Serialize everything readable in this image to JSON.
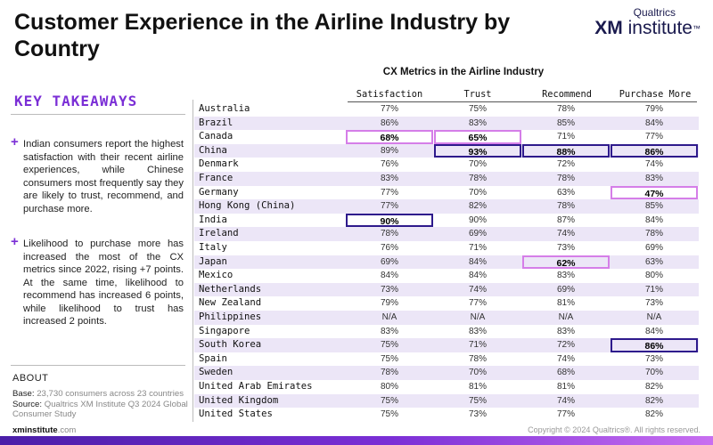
{
  "title": "Customer Experience in the Airline Industry by Country",
  "logo": {
    "top": "Qualtrics",
    "xm": "XM",
    "institute": " institute",
    "tm": "™"
  },
  "takeaways": {
    "heading": "KEY TAKEAWAYS",
    "items": [
      "Indian consumers report the highest satisfaction with their recent airline experiences, while Chinese consumers most frequently say they are likely to trust, recommend, and purchase more.",
      "Likelihood to purchase more has increased the most of the CX metrics since 2022, rising +7 points. At the same time, likelihood to recommend has increased 6 points, while likelihood to trust has increased 2 points."
    ]
  },
  "about": {
    "heading": "ABOUT",
    "base_label": "Base:",
    "base_value": " 23,730 consumers across 23 countries",
    "source_label": "Source:",
    "source_value": " Qualtrics XM Institute Q3 2024 Global Consumer Study",
    "site_main": "xminstitute",
    "site_dom": ".com"
  },
  "copyright": "Copyright © 2024 Qualtrics®. All rights reserved.",
  "chart_data": {
    "type": "table",
    "title": "CX Metrics in the Airline Industry",
    "columns": [
      "Satisfaction",
      "Trust",
      "Recommend",
      "Purchase More"
    ],
    "rows": [
      {
        "country": "Australia",
        "values": [
          "77%",
          "75%",
          "78%",
          "79%"
        ],
        "highlights": [
          "",
          "",
          "",
          ""
        ]
      },
      {
        "country": "Brazil",
        "values": [
          "86%",
          "83%",
          "85%",
          "84%"
        ],
        "highlights": [
          "",
          "",
          "",
          ""
        ]
      },
      {
        "country": "Canada",
        "values": [
          "68%",
          "65%",
          "71%",
          "77%"
        ],
        "highlights": [
          "low",
          "low",
          "",
          ""
        ]
      },
      {
        "country": "China",
        "values": [
          "89%",
          "93%",
          "88%",
          "86%"
        ],
        "highlights": [
          "",
          "high",
          "high",
          "high"
        ]
      },
      {
        "country": "Denmark",
        "values": [
          "76%",
          "70%",
          "72%",
          "74%"
        ],
        "highlights": [
          "",
          "",
          "",
          ""
        ]
      },
      {
        "country": "France",
        "values": [
          "83%",
          "78%",
          "78%",
          "83%"
        ],
        "highlights": [
          "",
          "",
          "",
          ""
        ]
      },
      {
        "country": "Germany",
        "values": [
          "77%",
          "70%",
          "63%",
          "47%"
        ],
        "highlights": [
          "",
          "",
          "",
          "low"
        ]
      },
      {
        "country": "Hong Kong (China)",
        "values": [
          "77%",
          "82%",
          "78%",
          "85%"
        ],
        "highlights": [
          "",
          "",
          "",
          ""
        ]
      },
      {
        "country": "India",
        "values": [
          "90%",
          "90%",
          "87%",
          "84%"
        ],
        "highlights": [
          "high",
          "",
          "",
          ""
        ]
      },
      {
        "country": "Ireland",
        "values": [
          "78%",
          "69%",
          "74%",
          "78%"
        ],
        "highlights": [
          "",
          "",
          "",
          ""
        ]
      },
      {
        "country": "Italy",
        "values": [
          "76%",
          "71%",
          "73%",
          "69%"
        ],
        "highlights": [
          "",
          "",
          "",
          ""
        ]
      },
      {
        "country": "Japan",
        "values": [
          "69%",
          "84%",
          "62%",
          "63%"
        ],
        "highlights": [
          "",
          "",
          "low",
          ""
        ]
      },
      {
        "country": "Mexico",
        "values": [
          "84%",
          "84%",
          "83%",
          "80%"
        ],
        "highlights": [
          "",
          "",
          "",
          ""
        ]
      },
      {
        "country": "Netherlands",
        "values": [
          "73%",
          "74%",
          "69%",
          "71%"
        ],
        "highlights": [
          "",
          "",
          "",
          ""
        ]
      },
      {
        "country": "New Zealand",
        "values": [
          "79%",
          "77%",
          "81%",
          "73%"
        ],
        "highlights": [
          "",
          "",
          "",
          ""
        ]
      },
      {
        "country": "Philippines",
        "values": [
          "N/A",
          "N/A",
          "N/A",
          "N/A"
        ],
        "highlights": [
          "",
          "",
          "",
          ""
        ]
      },
      {
        "country": "Singapore",
        "values": [
          "83%",
          "83%",
          "83%",
          "84%"
        ],
        "highlights": [
          "",
          "",
          "",
          ""
        ]
      },
      {
        "country": "South Korea",
        "values": [
          "75%",
          "71%",
          "72%",
          "86%"
        ],
        "highlights": [
          "",
          "",
          "",
          "high"
        ]
      },
      {
        "country": "Spain",
        "values": [
          "75%",
          "78%",
          "74%",
          "73%"
        ],
        "highlights": [
          "",
          "",
          "",
          ""
        ]
      },
      {
        "country": "Sweden",
        "values": [
          "78%",
          "70%",
          "68%",
          "70%"
        ],
        "highlights": [
          "",
          "",
          "",
          ""
        ]
      },
      {
        "country": "United Arab Emirates",
        "values": [
          "80%",
          "81%",
          "81%",
          "82%"
        ],
        "highlights": [
          "",
          "",
          "",
          ""
        ]
      },
      {
        "country": "United Kingdom",
        "values": [
          "75%",
          "75%",
          "74%",
          "82%"
        ],
        "highlights": [
          "",
          "",
          "",
          ""
        ]
      },
      {
        "country": "United States",
        "values": [
          "75%",
          "73%",
          "77%",
          "82%"
        ],
        "highlights": [
          "",
          "",
          "",
          ""
        ]
      }
    ]
  },
  "colors": {
    "accent": "#7b2fd6",
    "high_outline": "#2e1a8c",
    "low_outline": "#d57ee8",
    "row_stripe": "#ece6f7"
  }
}
